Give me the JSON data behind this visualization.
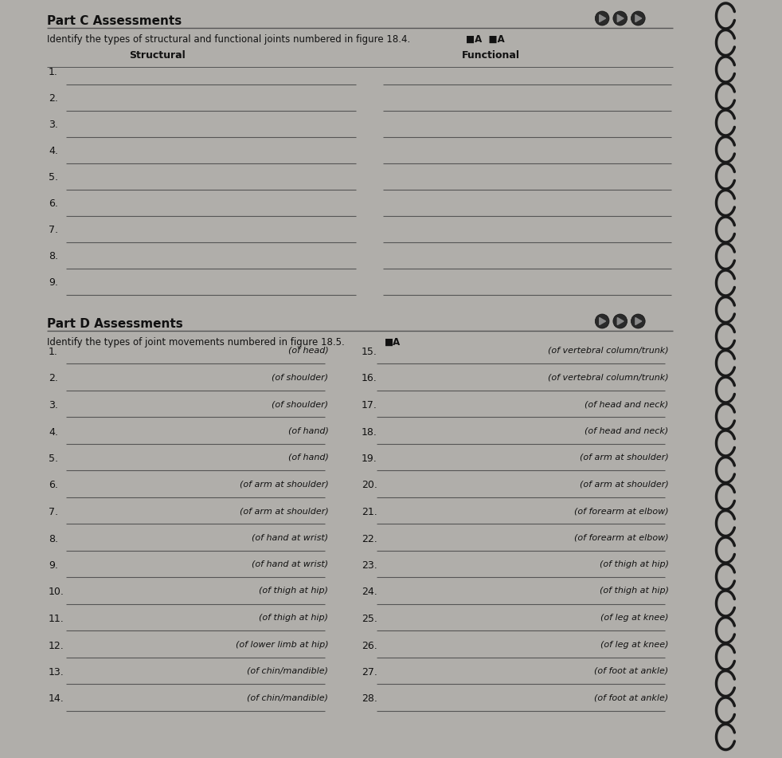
{
  "bg_color": "#b0aeaa",
  "page_bg": "#f5f4f0",
  "part_c_title": "Part C Assessments",
  "part_c_instruction": "Identify the types of structural and functional joints numbered in figure 18.4.",
  "structural_label": "Structural",
  "functional_label": "Functional",
  "part_c_rows": 9,
  "part_d_title": "Part D Assessments",
  "part_d_instruction": "Identify the types of joint movements numbered in figure 18.5.",
  "left_items": [
    {
      "num": "1.",
      "hint": "(of head)"
    },
    {
      "num": "2.",
      "hint": "(of shoulder)"
    },
    {
      "num": "3.",
      "hint": "(of shoulder)"
    },
    {
      "num": "4.",
      "hint": "(of hand)"
    },
    {
      "num": "5.",
      "hint": "(of hand)"
    },
    {
      "num": "6.",
      "hint": "(of arm at shoulder)"
    },
    {
      "num": "7.",
      "hint": "(of arm at shoulder)"
    },
    {
      "num": "8.",
      "hint": "(of hand at wrist)"
    },
    {
      "num": "9.",
      "hint": "(of hand at wrist)"
    },
    {
      "num": "10.",
      "hint": "(of thigh at hip)"
    },
    {
      "num": "11.",
      "hint": "(of thigh at hip)"
    },
    {
      "num": "12.",
      "hint": "(of lower limb at hip)"
    },
    {
      "num": "13.",
      "hint": "(of chin/mandible)"
    },
    {
      "num": "14.",
      "hint": "(of chin/mandible)"
    }
  ],
  "right_items": [
    {
      "num": "15.",
      "hint": "(of vertebral column/trunk)"
    },
    {
      "num": "16.",
      "hint": "(of vertebral column/trunk)"
    },
    {
      "num": "17.",
      "hint": "(of head and neck)"
    },
    {
      "num": "18.",
      "hint": "(of head and neck)"
    },
    {
      "num": "19.",
      "hint": "(of arm at shoulder)"
    },
    {
      "num": "20.",
      "hint": "(of arm at shoulder)"
    },
    {
      "num": "21.",
      "hint": "(of forearm at elbow)"
    },
    {
      "num": "22.",
      "hint": "(of forearm at elbow)"
    },
    {
      "num": "23.",
      "hint": "(of thigh at hip)"
    },
    {
      "num": "24.",
      "hint": "(of thigh at hip)"
    },
    {
      "num": "25.",
      "hint": "(of leg at knee)"
    },
    {
      "num": "26.",
      "hint": "(of leg at knee)"
    },
    {
      "num": "27.",
      "hint": "(of foot at ankle)"
    },
    {
      "num": "28.",
      "hint": "(of foot at ankle)"
    }
  ],
  "nav_dot_color": "#3a3a3a",
  "line_color": "#555555",
  "text_color": "#111111",
  "spiral_color": "#1a1a1a"
}
